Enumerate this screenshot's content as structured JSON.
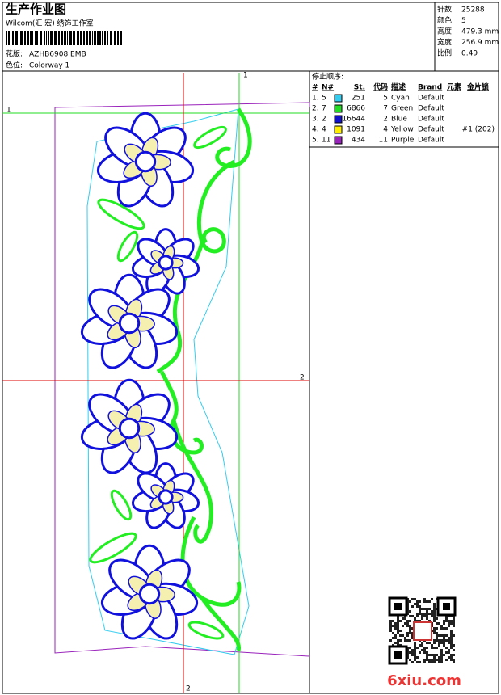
{
  "header": {
    "title": "生产作业图",
    "studio": "Wilcom(汇 宏) 绣饰工作室",
    "design_label": "花版:",
    "design": "AZHB6908.EMB",
    "colorway_label": "色位:",
    "colorway": "Colorway 1"
  },
  "info": [
    {
      "label": "针数:",
      "value": "25288"
    },
    {
      "label": "颜色:",
      "value": "5"
    },
    {
      "label": "高度:",
      "value": "479.3 mm"
    },
    {
      "label": "宽度:",
      "value": "256.9 mm"
    },
    {
      "label": "比例:",
      "value": "0.49"
    }
  ],
  "sequence": {
    "title": "停止顺序:",
    "columns": [
      "#",
      "N#",
      "St.",
      "代码",
      "描述",
      "Brand",
      "元素",
      "金片锁"
    ],
    "rows": [
      {
        "no": "1.",
        "needle": "5",
        "color": "#33ccee",
        "stitches": "251",
        "code": "5",
        "name": "Cyan",
        "brand": "Default"
      },
      {
        "no": "2.",
        "needle": "7",
        "color": "#22dd22",
        "stitches": "6866",
        "code": "7",
        "name": "Green",
        "brand": "Default"
      },
      {
        "no": "3.",
        "needle": "2",
        "color": "#1111cc",
        "stitches": "16644",
        "code": "2",
        "name": "Blue",
        "brand": "Default"
      },
      {
        "no": "4.",
        "needle": "4",
        "color": "#ffee00",
        "stitches": "1091",
        "code": "4",
        "name": "Yellow",
        "brand": "Default",
        "sequin": "#1 (202)"
      },
      {
        "no": "5.",
        "needle": "11",
        "color": "#9922bb",
        "stitches": "434",
        "code": "11",
        "name": "Purple",
        "brand": "Default"
      }
    ]
  },
  "guides": {
    "top": "1",
    "left": "1",
    "right": "2",
    "bottom": "2"
  },
  "watermark": "6xiu.com"
}
